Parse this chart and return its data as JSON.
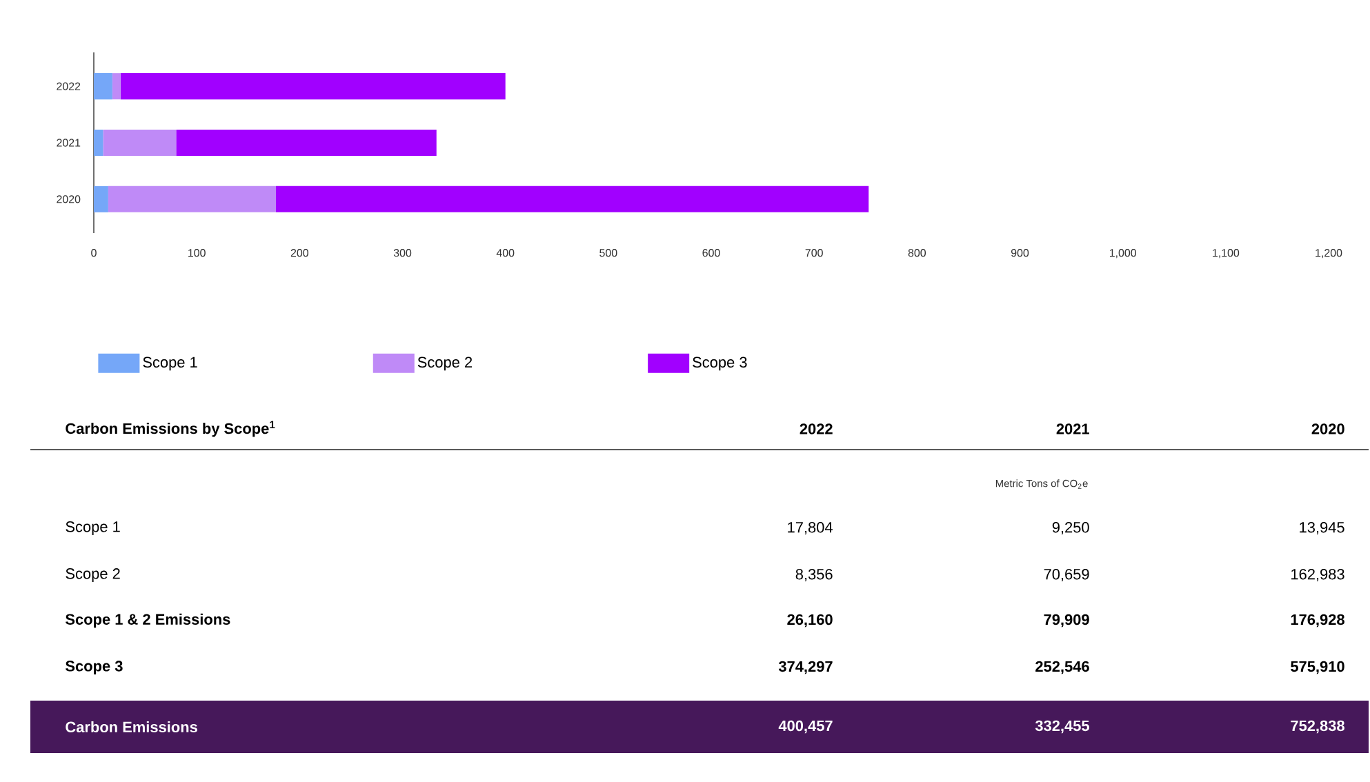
{
  "chart_data": {
    "type": "bar",
    "orientation": "horizontal",
    "stacked": true,
    "categories": [
      "2022",
      "2021",
      "2020"
    ],
    "series": [
      {
        "name": "Scope 1",
        "color": "#75a7f8",
        "values": [
          18,
          9,
          14
        ]
      },
      {
        "name": "Scope 2",
        "color": "#bf8af7",
        "values": [
          8,
          71,
          163
        ]
      },
      {
        "name": "Scope 3",
        "color": "#a100ff",
        "values": [
          374,
          253,
          576
        ]
      }
    ],
    "xlim": [
      0,
      1200
    ],
    "xticks": [
      0,
      100,
      200,
      300,
      400,
      500,
      600,
      700,
      800,
      900,
      {
        "value": 1000,
        "label": "1,000"
      },
      {
        "value": 1100,
        "label": "1,100"
      },
      {
        "value": 1200,
        "label": "1,200"
      }
    ],
    "legend": "bottom",
    "annotations": [
      "Carbon Emissions by Scope$^{1}$",
      "Metric Tons of CO$_{2}$e",
      "17,804",
      "9,250",
      "13,945",
      "8,356",
      "70,659",
      "162,983",
      "Scope 1 & 2 Emissions",
      "26,160",
      "79,909",
      "176,928",
      "374,297",
      "252,546",
      "575,910",
      "Carbon Emissions",
      "400,457",
      "332,455",
      "752,838"
    ]
  }
}
